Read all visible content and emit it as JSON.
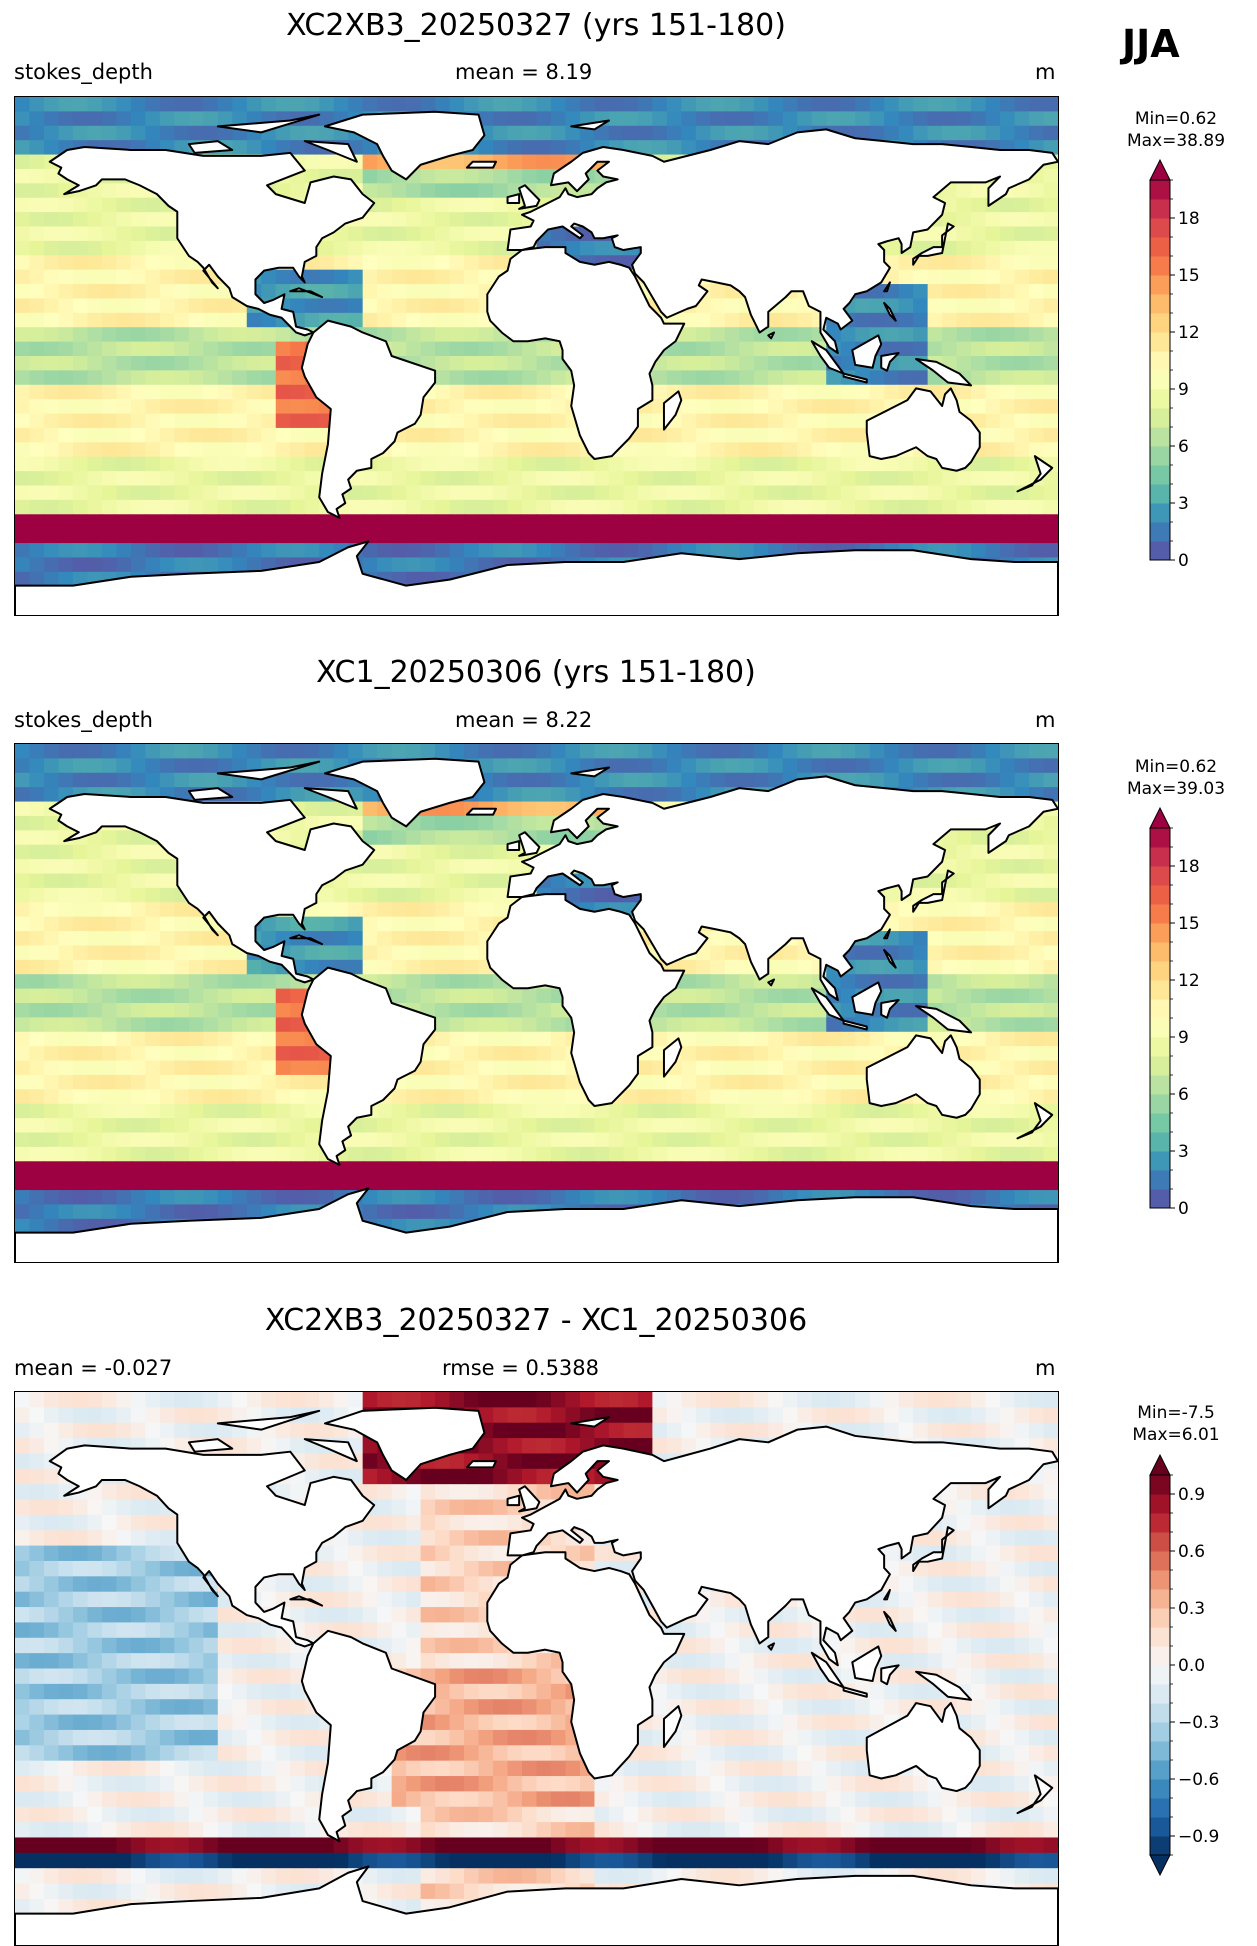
{
  "season": "JJA",
  "panels": [
    {
      "title": "XC2XB3_20250327 (yrs 151-180)",
      "left_text": "stokes_depth",
      "center_text": "mean = 8.19",
      "right_text": "m",
      "min_label": "Min=0.62",
      "max_label": "Max=38.89",
      "colormap": "Spectral_r",
      "colorbar_ticks": [
        "0",
        "3",
        "6",
        "9",
        "12",
        "15",
        "18"
      ],
      "colorbar_range": [
        0,
        20
      ],
      "colorbar_levels": 20,
      "colorbar_extend": "max"
    },
    {
      "title": "XC1_20250306 (yrs 151-180)",
      "left_text": "stokes_depth",
      "center_text": "mean = 8.22",
      "right_text": "m",
      "min_label": "Min=0.62",
      "max_label": "Max=39.03",
      "colormap": "Spectral_r",
      "colorbar_ticks": [
        "0",
        "3",
        "6",
        "9",
        "12",
        "15",
        "18"
      ],
      "colorbar_range": [
        0,
        20
      ],
      "colorbar_levels": 20,
      "colorbar_extend": "max"
    },
    {
      "title": "XC2XB3_20250327 - XC1_20250306",
      "left_text": "mean = -0.027",
      "center_text": "rmse = 0.5388",
      "right_text": "m",
      "min_label": "Min=-7.5",
      "max_label": "Max=6.01",
      "colormap": "RdBu_r",
      "colorbar_ticks": [
        "−0.9",
        "−0.6",
        "−0.3",
        "0.0",
        "0.3",
        "0.6",
        "0.9"
      ],
      "colorbar_range": [
        -1,
        1
      ],
      "colorbar_levels": 20,
      "colorbar_extend": "both"
    }
  ],
  "colors": {
    "spectral": [
      "#5e4fa2",
      "#3288bd",
      "#66c2a5",
      "#abdda4",
      "#e6f598",
      "#ffffbf",
      "#fee08b",
      "#fdae61",
      "#f46d43",
      "#d53e4f",
      "#9e0142"
    ],
    "rdbu": [
      "#053061",
      "#2166ac",
      "#4393c3",
      "#92c5de",
      "#d1e5f0",
      "#f7f7f7",
      "#fddbc7",
      "#f4a582",
      "#d6604d",
      "#b2182b",
      "#67001f"
    ],
    "land": "#ffffff",
    "coast": "#000000"
  }
}
